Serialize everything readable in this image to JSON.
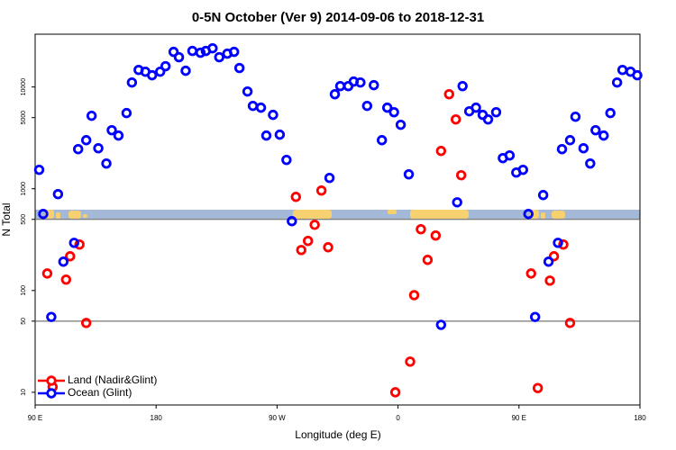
{
  "chart_data": {
    "type": "scatter",
    "title": "0-5N October (Ver 9)   2014-09-06 to 2018-12-31",
    "xlabel": "Longitude (deg E)",
    "ylabel": "N Total",
    "xlim": [
      90,
      540
    ],
    "xticks": [
      {
        "value": 90,
        "label": "90 E"
      },
      {
        "value": 180,
        "label": "180"
      },
      {
        "value": 270,
        "label": "90 W"
      },
      {
        "value": 360,
        "label": "0"
      },
      {
        "value": 450,
        "label": "90 E"
      },
      {
        "value": 540,
        "label": "180"
      }
    ],
    "ylim": [
      7.5,
      33000
    ],
    "yscale": "log",
    "yticks": [
      10,
      50,
      100,
      500,
      1000,
      5000,
      10000
    ],
    "hlines": [
      50,
      500
    ],
    "legend": "lower left",
    "series": [
      {
        "name": "Land (Nadir&Glint)",
        "color": "#ff0000",
        "x": [
          99,
          103,
          113,
          116,
          123,
          128,
          284,
          288,
          293,
          298,
          303,
          308,
          358,
          369,
          372,
          377,
          382,
          388,
          392,
          398,
          403,
          407,
          459,
          464,
          473,
          476,
          483,
          488
        ],
        "values": [
          147,
          11.3,
          128,
          217,
          283,
          48,
          832,
          250,
          307,
          442,
          960,
          266,
          10,
          20,
          90,
          400,
          200,
          347,
          2350,
          8490,
          4800,
          1358,
          147,
          11,
          125,
          217,
          283,
          48
        ]
      },
      {
        "name": "Ocean (Glint)",
        "color": "#0000ff",
        "x": [
          93,
          96,
          102,
          107,
          111,
          119,
          122,
          128,
          132,
          137,
          143,
          147,
          152,
          158,
          162,
          167,
          172,
          177,
          183,
          187,
          193,
          197,
          202,
          207,
          213,
          217,
          222,
          227,
          233,
          238,
          242,
          248,
          252,
          258,
          262,
          267,
          272,
          277,
          281,
          309,
          313,
          317,
          323,
          327,
          332,
          337,
          342,
          348,
          352,
          357,
          362,
          368,
          392,
          404,
          408,
          413,
          418,
          423,
          427,
          433,
          438,
          443,
          448,
          453,
          457,
          462,
          468,
          472,
          479,
          482,
          488,
          492,
          498,
          503,
          507,
          513,
          518,
          523,
          527,
          533,
          538
        ],
        "values": [
          1535,
          565,
          55,
          885,
          192,
          294,
          2450,
          3000,
          5210,
          2500,
          1770,
          3760,
          3330,
          5540,
          11070,
          14700,
          14130,
          13030,
          14130,
          15990,
          22130,
          19600,
          14430,
          22600,
          21700,
          22600,
          24000,
          19600,
          21250,
          22130,
          15350,
          9030,
          6520,
          6260,
          3330,
          5320,
          3400,
          1920,
          480,
          1277,
          8490,
          10200,
          10200,
          11300,
          11070,
          6520,
          10420,
          3000,
          6260,
          5650,
          4250,
          1386,
          46,
          736,
          10200,
          5770,
          6260,
          5320,
          4800,
          5650,
          2000,
          2125,
          1443,
          1535,
          565,
          55,
          867,
          192,
          294,
          2450,
          3000,
          5100,
          2500,
          1770,
          3760,
          3330,
          5540,
          11070,
          14700,
          14130,
          13030
        ]
      }
    ]
  }
}
